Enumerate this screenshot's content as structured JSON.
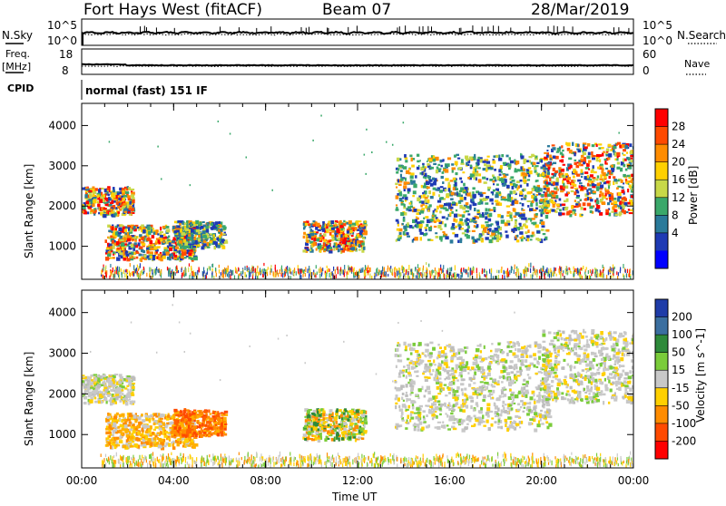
{
  "header": {
    "station": "Fort Hays West (fitACF)",
    "beam": "Beam 07",
    "date": "28/Mar/2019"
  },
  "top_panels": {
    "nsky_label": "N.Sky",
    "nsearch_label": "N.Search",
    "nsky_ticks": [
      "10^5",
      "10^0"
    ],
    "nsearch_ticks": [
      "10^5",
      "10^0"
    ],
    "freq_label": "Freq.",
    "freq_unit": "[MHz]",
    "freq_ticks": [
      "18",
      "8"
    ],
    "nave_label": "Nave",
    "nave_ticks": [
      "60",
      "0"
    ],
    "cpid_label": "CPID",
    "cpid_value": "normal (fast) 151 IF"
  },
  "chart_data": [
    {
      "type": "heatmap",
      "name": "power",
      "ylabel": "Slant Range [km]",
      "xlabel": "",
      "colorbar_label": "Power [dB]",
      "xlim": [
        0,
        24
      ],
      "ylim": [
        180,
        4550
      ],
      "x_ticks": [
        "00:00",
        "04:00",
        "08:00",
        "12:00",
        "16:00",
        "20:00",
        "00:00"
      ],
      "y_ticks": [
        1000,
        2000,
        3000,
        4000
      ],
      "colorbar_ticks": [
        "28",
        "24",
        "20",
        "16",
        "12",
        "8",
        "4"
      ],
      "colorbar_colors": [
        "#ff0000",
        "#ff4a00",
        "#ff8c00",
        "#ffd000",
        "#c8d848",
        "#3aa86a",
        "#2a7a9a",
        "#1e3ab4",
        "#0000ff"
      ],
      "echo_regions": [
        {
          "t": [
            0.0,
            2.2
          ],
          "r": [
            1800,
            2500
          ],
          "level": "high"
        },
        {
          "t": [
            1.0,
            4.9
          ],
          "r": [
            700,
            1550
          ],
          "level": "high"
        },
        {
          "t": [
            4.0,
            6.2
          ],
          "r": [
            1000,
            1650
          ],
          "level": "medium"
        },
        {
          "t": [
            9.6,
            12.3
          ],
          "r": [
            900,
            1650
          ],
          "level": "high"
        },
        {
          "t": [
            13.6,
            20.3
          ],
          "r": [
            1150,
            3300
          ],
          "level": "medium"
        },
        {
          "t": [
            20.0,
            24.0
          ],
          "r": [
            1800,
            3600
          ],
          "level": "high"
        }
      ]
    },
    {
      "type": "heatmap",
      "name": "velocity",
      "ylabel": "Slant Range [km]",
      "xlabel": "Time UT",
      "colorbar_label": "Velocity [m s^-1]",
      "xlim": [
        0,
        24
      ],
      "ylim": [
        180,
        4550
      ],
      "x_ticks": [
        "00:00",
        "04:00",
        "08:00",
        "12:00",
        "16:00",
        "20:00",
        "00:00"
      ],
      "y_ticks": [
        1000,
        2000,
        3000,
        4000
      ],
      "colorbar_ticks": [
        "200",
        "100",
        "50",
        "15",
        "-15",
        "-50",
        "-100",
        "-200"
      ],
      "colorbar_colors": [
        "#1f3ca8",
        "#3b6fa0",
        "#2e8a3a",
        "#7acc3a",
        "#c8c8c8",
        "#ffd000",
        "#ff8c00",
        "#ff4a00",
        "#ff0000"
      ],
      "echo_regions": [
        {
          "t": [
            0.0,
            2.2
          ],
          "r": [
            1800,
            2500
          ],
          "level": "ground"
        },
        {
          "t": [
            1.0,
            4.9
          ],
          "r": [
            700,
            1550
          ],
          "level": "negative"
        },
        {
          "t": [
            4.0,
            6.2
          ],
          "r": [
            1000,
            1650
          ],
          "level": "strong-negative"
        },
        {
          "t": [
            9.6,
            12.3
          ],
          "r": [
            900,
            1650
          ],
          "level": "mixed"
        },
        {
          "t": [
            13.6,
            20.3
          ],
          "r": [
            1150,
            3300
          ],
          "level": "ground"
        },
        {
          "t": [
            20.0,
            24.0
          ],
          "r": [
            1800,
            3600
          ],
          "level": "ground"
        }
      ]
    }
  ]
}
